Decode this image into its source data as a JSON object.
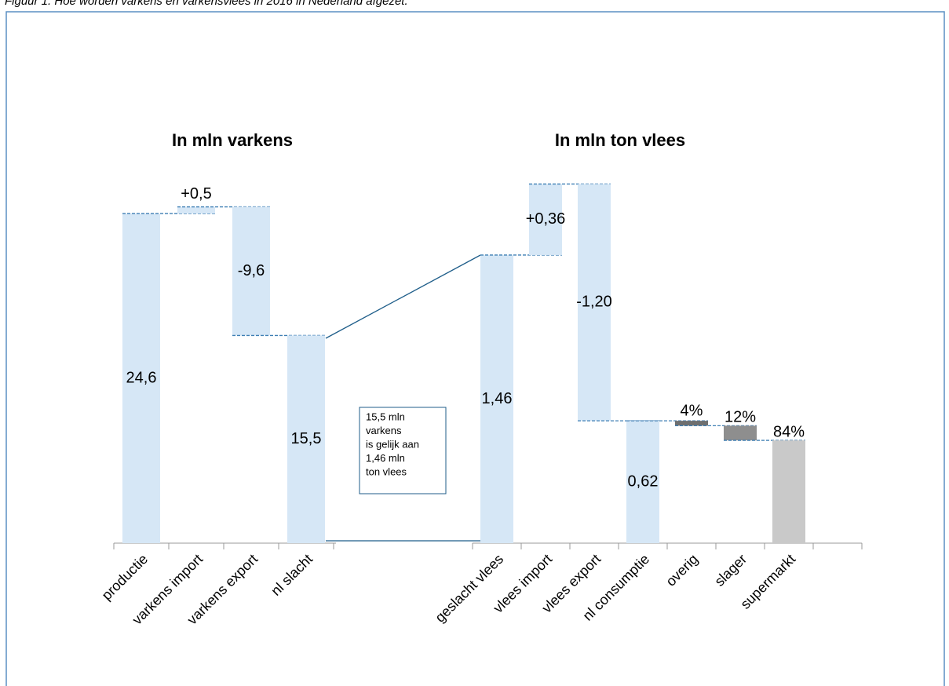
{
  "caption": "Figuur 1. Hoe worden varkens en varkensvlees in 2016 in Nederland afgezet.",
  "chart_data": [
    {
      "type": "waterfall",
      "title": "In mln varkens",
      "categories": [
        "productie",
        "varkens import",
        "varkens export",
        "nl slacht"
      ],
      "values": [
        24.6,
        0.5,
        -9.6,
        15.5
      ],
      "value_labels": [
        "24,6",
        "+0,5",
        "-9,6",
        "15,5"
      ],
      "color": "#d6e7f6"
    },
    {
      "type": "waterfall",
      "title": "In mln ton vlees",
      "categories": [
        "geslacht vlees",
        "vlees import",
        "vlees export",
        "nl consumptie"
      ],
      "values": [
        1.46,
        0.36,
        -1.2,
        0.62
      ],
      "value_labels": [
        "1,46",
        "+0,36",
        "-1,20",
        "0,62"
      ],
      "color": "#d6e7f6",
      "breakdown": {
        "categories": [
          "overig",
          "slager",
          "supermarkt"
        ],
        "values": [
          4,
          12,
          84
        ],
        "value_labels": [
          "4%",
          "12%",
          "84%"
        ],
        "colors": [
          "#6f6f6f",
          "#8e8e8e",
          "#c9c9c9"
        ]
      }
    }
  ],
  "annotation": [
    "15,5 mln",
    "varkens",
    "is gelijk aan",
    "1,46 mln",
    "ton vlees"
  ]
}
